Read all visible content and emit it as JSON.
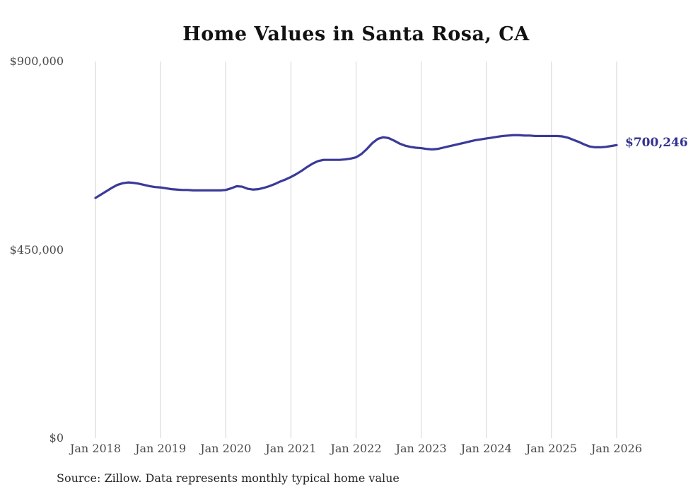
{
  "chart_data": {
    "type": "line",
    "title": "Home Values in Santa Rosa, CA",
    "source_note": "Source: Zillow. Data represents monthly typical home value",
    "end_label": "$700,246",
    "end_value": 700246,
    "x_start": "Jan 2018",
    "x_end": "Jan 2026",
    "frequency": "monthly",
    "x_tick_labels": [
      "Jan 2018",
      "Jan 2019",
      "Jan 2020",
      "Jan 2021",
      "Jan 2022",
      "Jan 2023",
      "Jan 2024",
      "Jan 2025",
      "Jan 2026"
    ],
    "y_ticks": [
      0,
      450000,
      900000
    ],
    "y_tick_labels": [
      "$0",
      "$450,000",
      "$900,000"
    ],
    "ylim": [
      0,
      900000
    ],
    "grid": "vertical-only",
    "legend": "none",
    "colors": {
      "line": "#3a3a99",
      "end_label": "#32328f",
      "grid": "#d2d2d2",
      "axis_text": "#4a4a4a",
      "title_text": "#121212"
    },
    "series": [
      {
        "name": "Typical home value",
        "values": [
          574000,
          582000,
          590000,
          598000,
          605000,
          609000,
          611000,
          610000,
          608000,
          605000,
          602000,
          600000,
          599000,
          597000,
          595000,
          594000,
          593000,
          593000,
          592000,
          592000,
          592000,
          592000,
          592000,
          592000,
          593000,
          597000,
          602000,
          601000,
          596000,
          594000,
          595000,
          598000,
          602000,
          607000,
          613000,
          618000,
          624000,
          631000,
          639000,
          648000,
          656000,
          662000,
          665000,
          665000,
          665000,
          665000,
          666000,
          668000,
          671000,
          679000,
          691000,
          705000,
          715000,
          719000,
          717000,
          711000,
          704000,
          699000,
          696000,
          694000,
          693000,
          691000,
          690000,
          691000,
          694000,
          697000,
          700000,
          703000,
          706000,
          709000,
          712000,
          714000,
          716000,
          718000,
          720000,
          722000,
          723000,
          724000,
          724000,
          723000,
          723000,
          722000,
          722000,
          722000,
          722000,
          722000,
          721000,
          718000,
          713000,
          708000,
          702000,
          697000,
          695000,
          695000,
          696000,
          698000,
          700246
        ]
      }
    ]
  }
}
